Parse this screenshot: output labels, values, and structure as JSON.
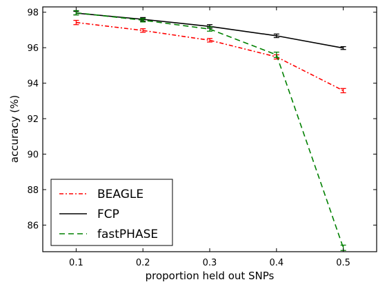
{
  "chart_data": {
    "type": "line",
    "title": "",
    "xlabel": "proportion held out SNPs",
    "ylabel": "accuracy (%)",
    "xlim": [
      0.05,
      0.55
    ],
    "ylim": [
      84.5,
      98.3
    ],
    "x": [
      0.1,
      0.2,
      0.3,
      0.4,
      0.5
    ],
    "xticks": [
      "0.1",
      "0.2",
      "0.3",
      "0.4",
      "0.5"
    ],
    "yticks": [
      "86",
      "88",
      "90",
      "92",
      "94",
      "96",
      "98"
    ],
    "grid": false,
    "legend_position": "lower-left",
    "series": [
      {
        "name": "BEAGLE",
        "color": "#ff0000",
        "linestyle": "dash-dot",
        "values": [
          97.42,
          96.97,
          96.42,
          95.48,
          93.58
        ],
        "errors": [
          0.12,
          0.1,
          0.1,
          0.12,
          0.12
        ]
      },
      {
        "name": "FCP",
        "color": "#000000",
        "linestyle": "solid",
        "values": [
          97.95,
          97.6,
          97.2,
          96.67,
          95.98
        ],
        "errors": [
          0.1,
          0.1,
          0.1,
          0.1,
          0.08
        ]
      },
      {
        "name": "fastPHASE",
        "color": "#008000",
        "linestyle": "dashed",
        "values": [
          97.97,
          97.55,
          97.05,
          95.6,
          84.72
        ],
        "errors": [
          0.12,
          0.1,
          0.12,
          0.15,
          0.15
        ]
      }
    ]
  }
}
